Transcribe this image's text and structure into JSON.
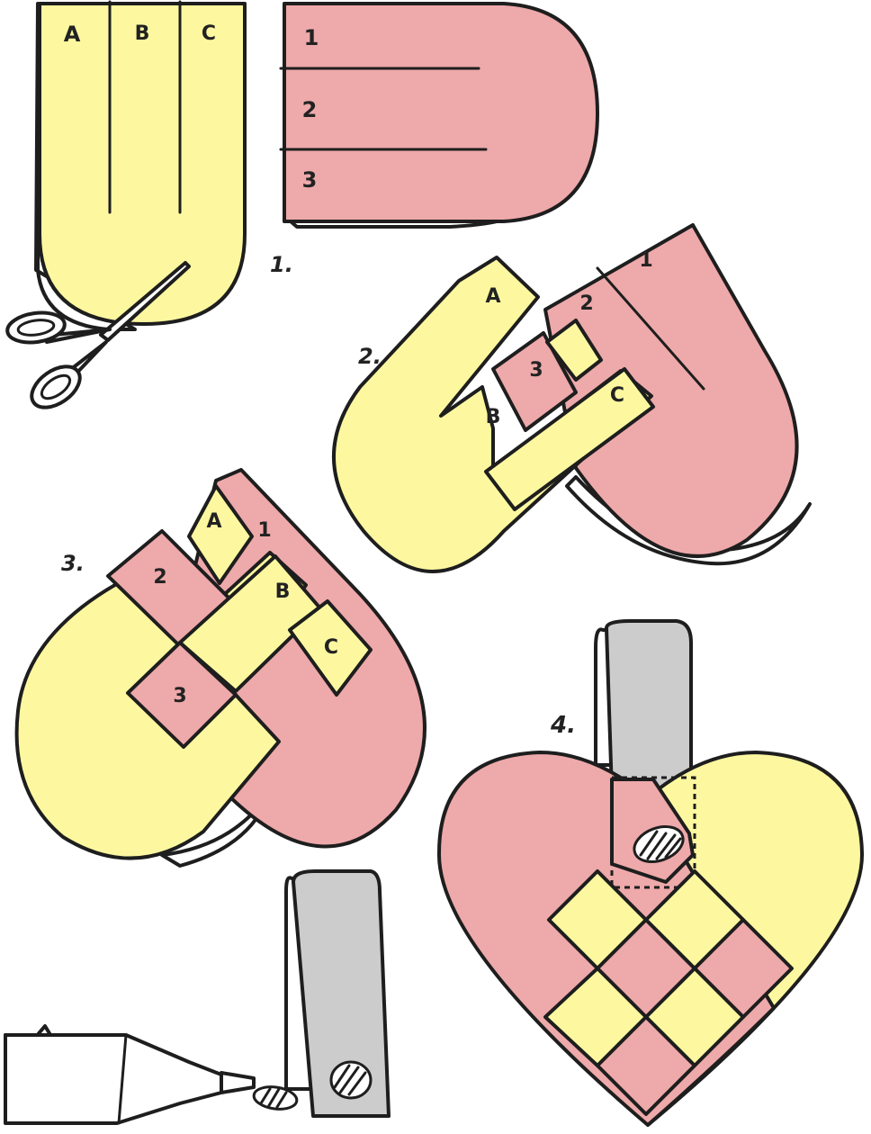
{
  "colors": {
    "yellow": "#fdf8a0",
    "pink": "#eea9aa",
    "grey": "#cccccc",
    "outline": "#1e1e1e",
    "paper": "#ffffff"
  },
  "steps": {
    "s1": "1.",
    "s2": "2.",
    "s3": "3.",
    "s4": "4."
  },
  "step1": {
    "yellow_labels": [
      "A",
      "B",
      "C"
    ],
    "pink_labels": [
      "1",
      "2",
      "3"
    ]
  },
  "step2": {
    "labels": {
      "a": "A",
      "b": "B",
      "c": "C",
      "n1": "1",
      "n2": "2",
      "n3": "3"
    }
  },
  "step3": {
    "labels": {
      "a": "A",
      "b": "B",
      "c": "C",
      "n1": "1",
      "n2": "2",
      "n3": "3"
    }
  },
  "icons": [
    "scissors-icon",
    "glue-tube-icon"
  ]
}
